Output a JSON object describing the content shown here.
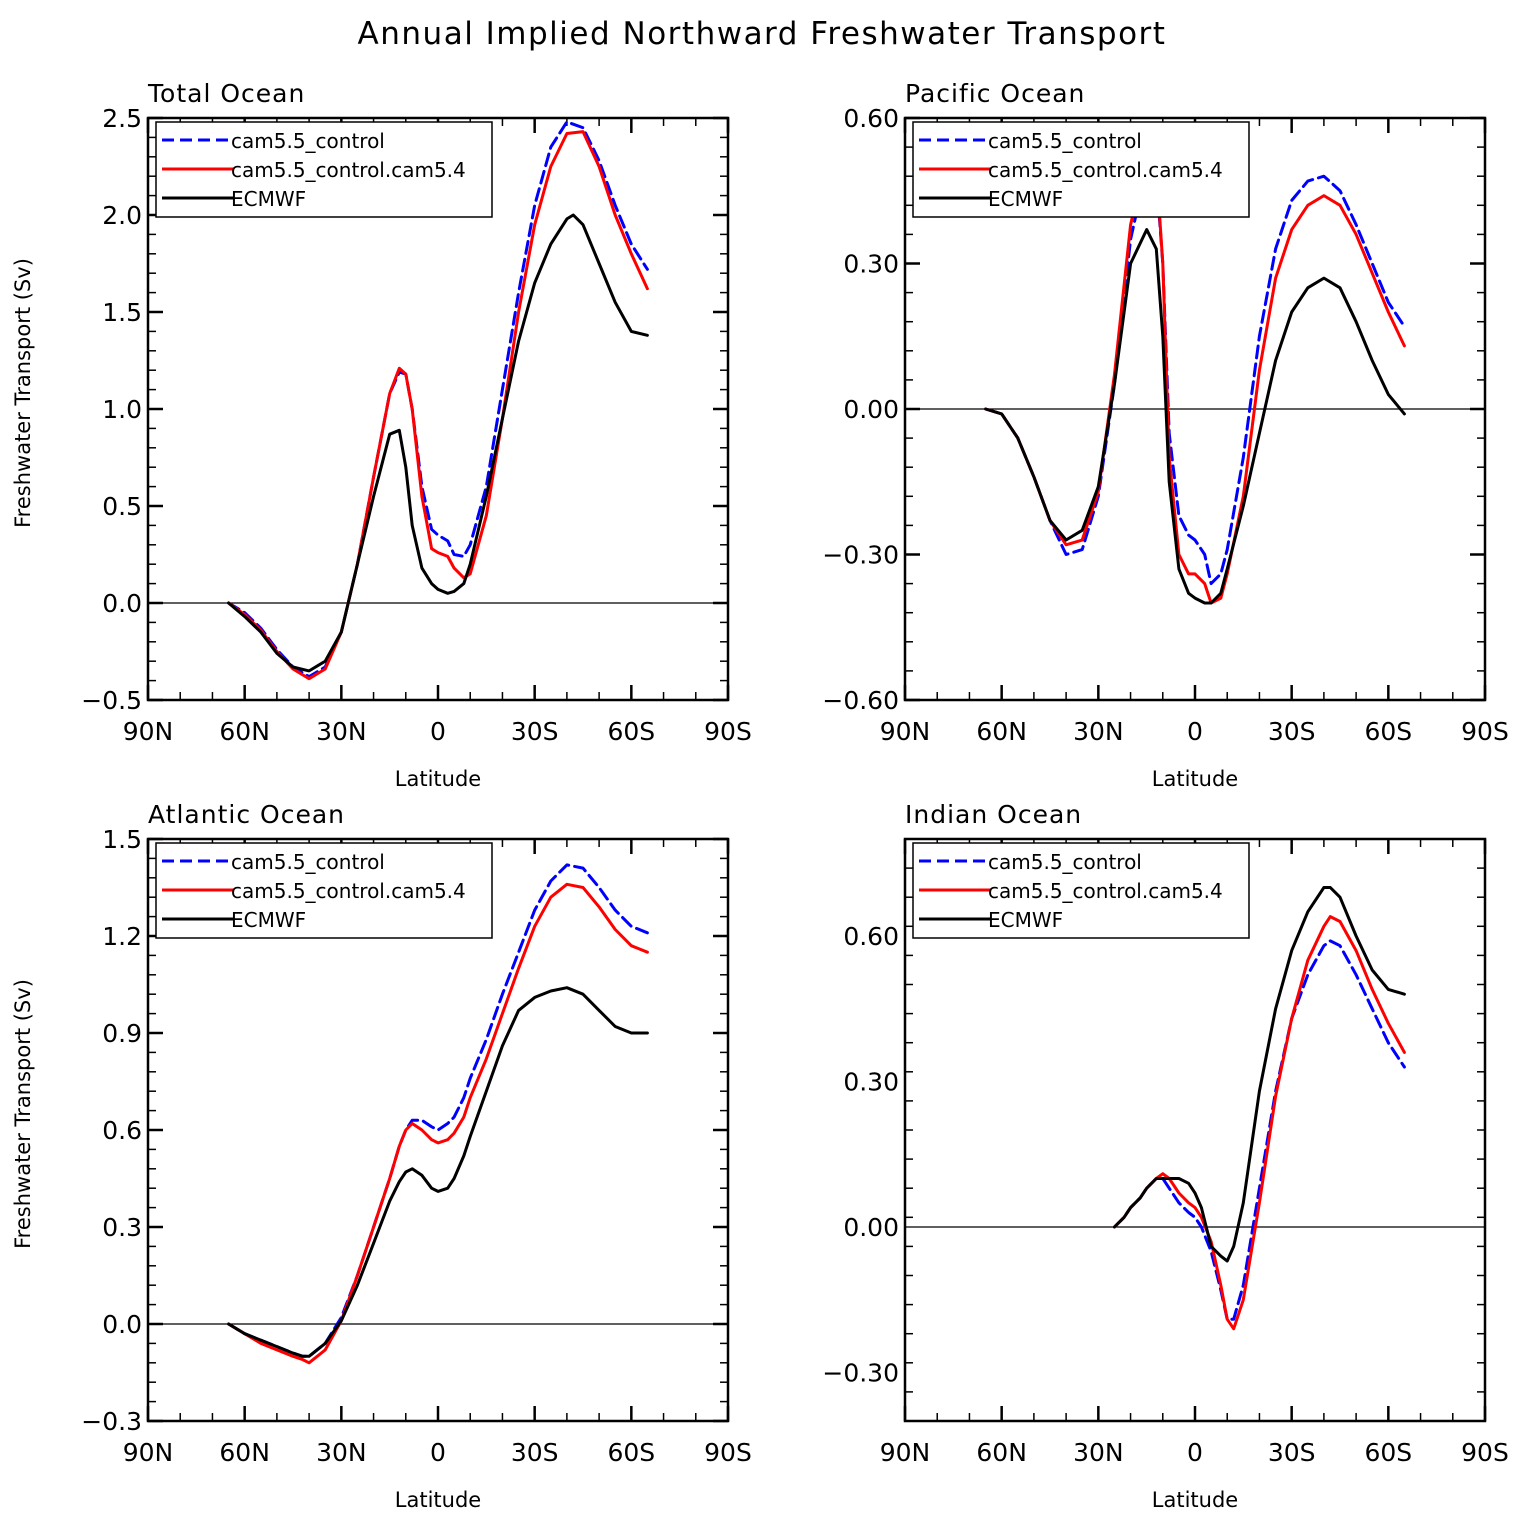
{
  "title": "Annual Implied Northward Freshwater Transport",
  "x_axis_label": "Latitude",
  "y_axis_label": "Freshwater Transport (Sv)",
  "x_tick_labels": [
    "90N",
    "60N",
    "30N",
    "0",
    "30S",
    "60S",
    "90S"
  ],
  "legend": [
    "cam5.5_control",
    "cam5.5_control.cam5.4",
    "ECMWF"
  ],
  "colors": {
    "cam5.5_control": "#0000ff",
    "cam5.5_control.cam5.4": "#ff0000",
    "ECMWF": "#000000"
  },
  "chart_data": [
    {
      "type": "line",
      "title": "Total Ocean",
      "xlabel": "Latitude",
      "ylabel": "Freshwater Transport (Sv)",
      "xlim": [
        90,
        -90
      ],
      "ylim": [
        -0.5,
        2.5
      ],
      "yticks": [
        "-0.5",
        "0.0",
        "0.5",
        "1.0",
        "1.5",
        "2.0",
        "2.5"
      ],
      "grid": false,
      "legend_position": "top-left",
      "series": [
        {
          "name": "cam5.5_control",
          "style": "dashed",
          "x": [
            65,
            60,
            55,
            50,
            45,
            40,
            35,
            30,
            25,
            20,
            15,
            12,
            10,
            8,
            5,
            2,
            0,
            -3,
            -5,
            -8,
            -10,
            -15,
            -20,
            -25,
            -30,
            -35,
            -40,
            -45,
            -50,
            -55,
            -60,
            -65
          ],
          "y": [
            0.0,
            -0.05,
            -0.13,
            -0.24,
            -0.33,
            -0.38,
            -0.33,
            -0.15,
            0.2,
            0.65,
            1.08,
            1.19,
            1.18,
            1.0,
            0.6,
            0.38,
            0.35,
            0.32,
            0.25,
            0.24,
            0.3,
            0.6,
            1.1,
            1.6,
            2.05,
            2.35,
            2.48,
            2.45,
            2.28,
            2.05,
            1.85,
            1.72
          ]
        },
        {
          "name": "cam5.5_control.cam5.4",
          "style": "solid",
          "x": [
            65,
            60,
            55,
            50,
            45,
            40,
            35,
            30,
            25,
            20,
            15,
            12,
            10,
            8,
            5,
            2,
            0,
            -3,
            -5,
            -8,
            -10,
            -15,
            -20,
            -25,
            -30,
            -35,
            -40,
            -45,
            -50,
            -55,
            -60,
            -65
          ],
          "y": [
            0.0,
            -0.06,
            -0.14,
            -0.25,
            -0.34,
            -0.39,
            -0.34,
            -0.15,
            0.2,
            0.65,
            1.08,
            1.21,
            1.18,
            1.0,
            0.55,
            0.28,
            0.26,
            0.24,
            0.18,
            0.13,
            0.15,
            0.45,
            0.95,
            1.5,
            1.95,
            2.25,
            2.42,
            2.43,
            2.25,
            2.0,
            1.8,
            1.62
          ]
        },
        {
          "name": "ECMWF",
          "style": "solid",
          "x": [
            65,
            60,
            55,
            50,
            45,
            40,
            35,
            30,
            25,
            20,
            15,
            12,
            10,
            8,
            5,
            2,
            0,
            -3,
            -5,
            -8,
            -10,
            -15,
            -20,
            -25,
            -30,
            -35,
            -40,
            -42,
            -45,
            -50,
            -55,
            -60,
            -65
          ],
          "y": [
            0.0,
            -0.07,
            -0.15,
            -0.26,
            -0.33,
            -0.35,
            -0.3,
            -0.15,
            0.2,
            0.55,
            0.87,
            0.89,
            0.7,
            0.4,
            0.18,
            0.1,
            0.07,
            0.05,
            0.06,
            0.1,
            0.2,
            0.55,
            0.95,
            1.35,
            1.65,
            1.85,
            1.98,
            2.0,
            1.95,
            1.75,
            1.55,
            1.4,
            1.38
          ]
        }
      ]
    },
    {
      "type": "line",
      "title": "Pacific Ocean",
      "xlabel": "Latitude",
      "ylabel": "",
      "xlim": [
        90,
        -90
      ],
      "ylim": [
        -0.6,
        0.6
      ],
      "yticks": [
        "-0.60",
        "-0.30",
        "0.00",
        "0.30",
        "0.60"
      ],
      "grid": false,
      "legend_position": "top-left",
      "series": [
        {
          "name": "cam5.5_control",
          "style": "dashed",
          "x": [
            65,
            60,
            55,
            50,
            45,
            40,
            35,
            30,
            25,
            20,
            15,
            12,
            10,
            8,
            5,
            2,
            0,
            -3,
            -5,
            -8,
            -10,
            -15,
            -20,
            -25,
            -30,
            -35,
            -40,
            -45,
            -50,
            -55,
            -60,
            -65
          ],
          "y": [
            0.0,
            -0.01,
            -0.06,
            -0.14,
            -0.23,
            -0.3,
            -0.29,
            -0.18,
            0.05,
            0.35,
            0.5,
            0.48,
            0.3,
            -0.05,
            -0.22,
            -0.26,
            -0.27,
            -0.3,
            -0.36,
            -0.34,
            -0.29,
            -0.1,
            0.15,
            0.33,
            0.43,
            0.47,
            0.48,
            0.45,
            0.38,
            0.3,
            0.22,
            0.17
          ]
        },
        {
          "name": "cam5.5_control.cam5.4",
          "style": "solid",
          "x": [
            65,
            60,
            55,
            50,
            45,
            40,
            35,
            30,
            25,
            20,
            15,
            12,
            10,
            8,
            5,
            2,
            0,
            -3,
            -5,
            -8,
            -10,
            -15,
            -20,
            -25,
            -30,
            -35,
            -40,
            -45,
            -50,
            -55,
            -60,
            -65
          ],
          "y": [
            0.0,
            -0.01,
            -0.06,
            -0.14,
            -0.23,
            -0.28,
            -0.27,
            -0.17,
            0.07,
            0.38,
            0.52,
            0.5,
            0.3,
            -0.1,
            -0.3,
            -0.34,
            -0.34,
            -0.36,
            -0.4,
            -0.39,
            -0.34,
            -0.18,
            0.08,
            0.27,
            0.37,
            0.42,
            0.44,
            0.42,
            0.36,
            0.28,
            0.2,
            0.13
          ]
        },
        {
          "name": "ECMWF",
          "style": "solid",
          "x": [
            65,
            60,
            55,
            50,
            45,
            40,
            35,
            30,
            25,
            20,
            15,
            12,
            10,
            8,
            5,
            2,
            0,
            -3,
            -5,
            -8,
            -10,
            -15,
            -20,
            -25,
            -30,
            -35,
            -40,
            -45,
            -50,
            -55,
            -60,
            -65
          ],
          "y": [
            0.0,
            -0.01,
            -0.06,
            -0.14,
            -0.23,
            -0.27,
            -0.25,
            -0.16,
            0.05,
            0.3,
            0.37,
            0.33,
            0.15,
            -0.15,
            -0.33,
            -0.38,
            -0.39,
            -0.4,
            -0.4,
            -0.38,
            -0.33,
            -0.2,
            -0.05,
            0.1,
            0.2,
            0.25,
            0.27,
            0.25,
            0.18,
            0.1,
            0.03,
            -0.01
          ]
        }
      ]
    },
    {
      "type": "line",
      "title": "Atlantic Ocean",
      "xlabel": "Latitude",
      "ylabel": "Freshwater Transport (Sv)",
      "xlim": [
        90,
        -90
      ],
      "ylim": [
        -0.3,
        1.5
      ],
      "yticks": [
        "-0.3",
        "0.0",
        "0.3",
        "0.6",
        "0.9",
        "1.2",
        "1.5"
      ],
      "grid": false,
      "legend_position": "top-left",
      "series": [
        {
          "name": "cam5.5_control",
          "style": "dashed",
          "x": [
            65,
            60,
            55,
            50,
            45,
            42,
            40,
            35,
            30,
            25,
            20,
            15,
            12,
            10,
            8,
            5,
            2,
            0,
            -3,
            -5,
            -8,
            -10,
            -15,
            -20,
            -25,
            -30,
            -35,
            -40,
            -45,
            -50,
            -55,
            -60,
            -65
          ],
          "y": [
            0.0,
            -0.03,
            -0.05,
            -0.07,
            -0.09,
            -0.1,
            -0.1,
            -0.06,
            0.02,
            0.15,
            0.3,
            0.45,
            0.55,
            0.6,
            0.63,
            0.63,
            0.61,
            0.6,
            0.62,
            0.64,
            0.7,
            0.76,
            0.88,
            1.02,
            1.15,
            1.28,
            1.37,
            1.42,
            1.41,
            1.35,
            1.28,
            1.23,
            1.21
          ]
        },
        {
          "name": "cam5.5_control.cam5.4",
          "style": "solid",
          "x": [
            65,
            60,
            55,
            50,
            45,
            42,
            40,
            35,
            30,
            25,
            20,
            15,
            12,
            10,
            8,
            5,
            2,
            0,
            -3,
            -5,
            -8,
            -10,
            -15,
            -20,
            -25,
            -30,
            -35,
            -40,
            -45,
            -50,
            -55,
            -60,
            -65
          ],
          "y": [
            0.0,
            -0.03,
            -0.06,
            -0.08,
            -0.1,
            -0.11,
            -0.12,
            -0.08,
            0.01,
            0.15,
            0.3,
            0.45,
            0.55,
            0.6,
            0.62,
            0.6,
            0.57,
            0.56,
            0.57,
            0.59,
            0.64,
            0.7,
            0.82,
            0.96,
            1.1,
            1.23,
            1.32,
            1.36,
            1.35,
            1.29,
            1.22,
            1.17,
            1.15
          ]
        },
        {
          "name": "ECMWF",
          "style": "solid",
          "x": [
            65,
            60,
            55,
            50,
            45,
            42,
            40,
            35,
            30,
            25,
            20,
            15,
            12,
            10,
            8,
            5,
            2,
            0,
            -3,
            -5,
            -8,
            -10,
            -15,
            -20,
            -25,
            -30,
            -35,
            -40,
            -45,
            -50,
            -55,
            -60,
            -65
          ],
          "y": [
            0.0,
            -0.03,
            -0.05,
            -0.07,
            -0.09,
            -0.1,
            -0.1,
            -0.06,
            0.01,
            0.12,
            0.25,
            0.38,
            0.44,
            0.47,
            0.48,
            0.46,
            0.42,
            0.41,
            0.42,
            0.45,
            0.52,
            0.58,
            0.72,
            0.86,
            0.97,
            1.01,
            1.03,
            1.04,
            1.02,
            0.97,
            0.92,
            0.9,
            0.9
          ]
        }
      ]
    },
    {
      "type": "line",
      "title": "Indian Ocean",
      "xlabel": "Latitude",
      "ylabel": "",
      "xlim": [
        90,
        -90
      ],
      "ylim": [
        -0.4,
        0.8
      ],
      "yticks": [
        "-0.30",
        "0.00",
        "0.30",
        "0.60"
      ],
      "grid": false,
      "legend_position": "top-left",
      "series": [
        {
          "name": "cam5.5_control",
          "style": "dashed",
          "x": [
            25,
            22,
            20,
            17,
            15,
            12,
            10,
            8,
            5,
            2,
            0,
            -2,
            -5,
            -8,
            -10,
            -12,
            -15,
            -20,
            -25,
            -30,
            -35,
            -40,
            -42,
            -45,
            -50,
            -55,
            -60,
            -65
          ],
          "y": [
            0.0,
            0.02,
            0.04,
            0.06,
            0.08,
            0.1,
            0.1,
            0.08,
            0.05,
            0.03,
            0.02,
            0.0,
            -0.05,
            -0.13,
            -0.19,
            -0.19,
            -0.12,
            0.08,
            0.28,
            0.43,
            0.52,
            0.58,
            0.59,
            0.58,
            0.52,
            0.45,
            0.38,
            0.33
          ]
        },
        {
          "name": "cam5.5_control.cam5.4",
          "style": "solid",
          "x": [
            25,
            22,
            20,
            17,
            15,
            12,
            10,
            8,
            5,
            2,
            0,
            -2,
            -5,
            -8,
            -10,
            -12,
            -15,
            -20,
            -25,
            -30,
            -35,
            -40,
            -42,
            -45,
            -50,
            -55,
            -60,
            -65
          ],
          "y": [
            0.0,
            0.02,
            0.04,
            0.06,
            0.08,
            0.1,
            0.11,
            0.1,
            0.07,
            0.05,
            0.04,
            0.02,
            -0.03,
            -0.12,
            -0.19,
            -0.21,
            -0.15,
            0.05,
            0.27,
            0.43,
            0.55,
            0.62,
            0.64,
            0.63,
            0.57,
            0.49,
            0.42,
            0.36
          ]
        },
        {
          "name": "ECMWF",
          "style": "solid",
          "x": [
            25,
            22,
            20,
            17,
            15,
            12,
            10,
            8,
            5,
            2,
            0,
            -2,
            -5,
            -8,
            -10,
            -12,
            -15,
            -20,
            -25,
            -30,
            -35,
            -40,
            -42,
            -45,
            -50,
            -55,
            -60,
            -65
          ],
          "y": [
            0.0,
            0.02,
            0.04,
            0.06,
            0.08,
            0.1,
            0.1,
            0.1,
            0.1,
            0.09,
            0.07,
            0.04,
            -0.04,
            -0.06,
            -0.07,
            -0.04,
            0.05,
            0.28,
            0.45,
            0.57,
            0.65,
            0.7,
            0.7,
            0.68,
            0.6,
            0.53,
            0.49,
            0.48
          ]
        }
      ]
    }
  ]
}
